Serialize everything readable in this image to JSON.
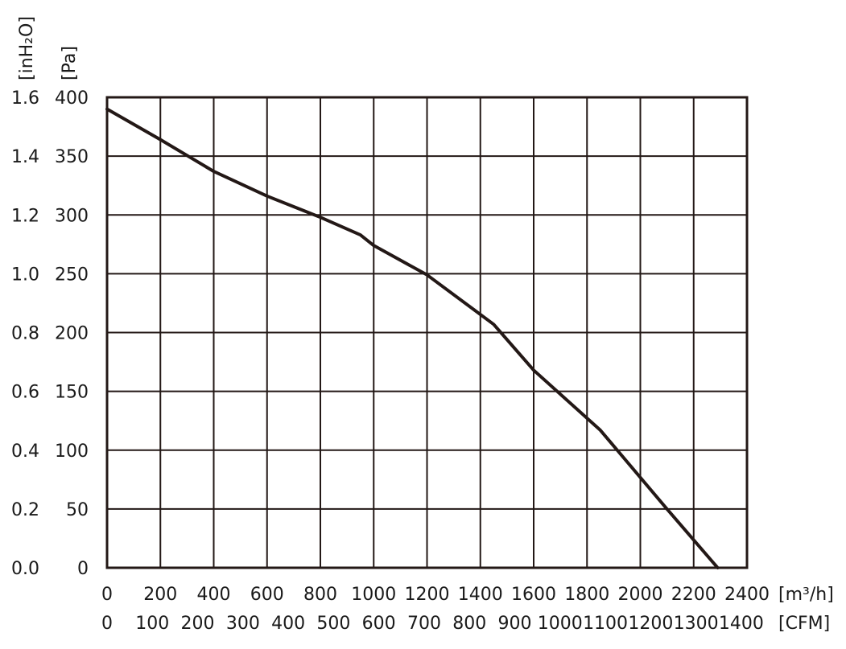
{
  "chart_data": {
    "type": "line",
    "title": "",
    "x": [
      0,
      200,
      400,
      600,
      800,
      950,
      1000,
      1200,
      1450,
      1600,
      1850,
      2100,
      2290
    ],
    "series": [
      {
        "values": [
          390,
          364,
          337,
          316,
          298,
          283,
          274,
          249,
          207,
          168,
          117,
          50,
          0
        ]
      }
    ],
    "xlim": [
      0,
      2400
    ],
    "ylim": [
      0,
      400
    ],
    "grid": true,
    "x_ticks_m3h": [
      "0",
      "200",
      "400",
      "600",
      "800",
      "1000",
      "1200",
      "1400",
      "1600",
      "1800",
      "2000",
      "2200",
      "2400"
    ],
    "x_ticks_cfm": [
      "0",
      "100",
      "200",
      "300",
      "400",
      "500",
      "600",
      "700",
      "800",
      "900",
      "1000",
      "1100",
      "1200",
      "1300",
      "1400"
    ],
    "y_ticks_pa": [
      "0",
      "50",
      "100",
      "150",
      "200",
      "250",
      "300",
      "350",
      "400"
    ],
    "y_ticks_inh2o": [
      "0.0",
      "0.2",
      "0.4",
      "0.6",
      "0.8",
      "1.0",
      "1.2",
      "1.4",
      "1.6"
    ],
    "x_unit_m3h": "[m³/h]",
    "x_unit_cfm": "[CFM]",
    "y_unit_pa": "[Pa]",
    "y_unit_inh2o": "[inH₂O]",
    "line_color": "#231816",
    "grid_color": "#231816"
  }
}
